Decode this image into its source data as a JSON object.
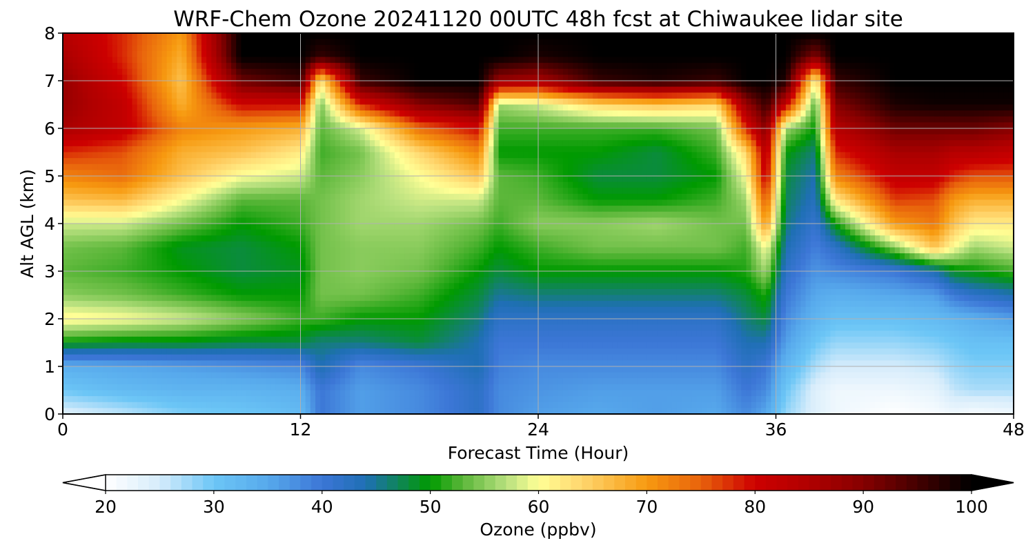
{
  "chart_data": {
    "type": "heatmap",
    "title": "WRF-Chem Ozone  20241120 00UTC 48h fcst at Chiwaukee lidar site",
    "xlabel": "Forecast Time (Hour)",
    "ylabel": "Alt AGL (km)",
    "xlim": [
      0,
      48
    ],
    "ylim": [
      0,
      8
    ],
    "xticks": [
      "0",
      "12",
      "24",
      "36",
      "48"
    ],
    "yticks": [
      "0",
      "1",
      "2",
      "3",
      "4",
      "5",
      "6",
      "7",
      "8"
    ],
    "grid": true,
    "hours": [
      0,
      3,
      6,
      9,
      12,
      13,
      15,
      18,
      21,
      22,
      24,
      27,
      30,
      33,
      34.5,
      35.5,
      36.5,
      38,
      39,
      42,
      44,
      45,
      46,
      48
    ],
    "altitudes_km": [
      0,
      0.5,
      1,
      1.5,
      2,
      2.5,
      3,
      3.5,
      4,
      4.5,
      5,
      5.5,
      6,
      6.5,
      7,
      7.5,
      8
    ],
    "values_ppbv": [
      [
        24,
        26,
        29,
        30,
        32,
        40,
        36,
        38,
        42,
        38,
        36,
        35,
        36,
        35,
        38,
        35,
        28,
        24,
        22,
        20,
        21,
        22,
        21,
        22
      ],
      [
        30,
        32,
        33,
        33,
        34,
        40,
        36,
        38,
        42,
        38,
        37,
        36,
        36,
        36,
        40,
        38,
        30,
        24,
        22,
        22,
        23,
        26,
        27,
        27
      ],
      [
        34,
        35,
        36,
        37,
        38,
        44,
        38,
        40,
        44,
        39,
        38,
        38,
        38,
        38,
        42,
        40,
        33,
        27,
        25,
        25,
        26,
        28,
        29,
        29
      ],
      [
        50,
        49,
        49,
        48,
        48,
        46,
        46,
        48,
        44,
        40,
        40,
        40,
        40,
        40,
        44,
        44,
        36,
        30,
        28,
        28,
        29,
        30,
        31,
        31
      ],
      [
        61,
        60,
        58,
        55,
        52,
        52,
        50,
        50,
        46,
        42,
        42,
        42,
        42,
        42,
        46,
        48,
        38,
        33,
        31,
        31,
        32,
        33,
        34,
        36
      ],
      [
        55,
        54,
        52,
        50,
        50,
        54,
        54,
        52,
        48,
        45,
        46,
        46,
        46,
        46,
        48,
        51,
        40,
        35,
        34,
        35,
        36,
        40,
        42,
        44
      ],
      [
        53,
        52,
        50,
        48,
        49,
        54,
        55,
        54,
        50,
        48,
        50,
        50,
        50,
        50,
        51,
        56,
        42,
        37,
        38,
        40,
        44,
        49,
        50,
        52
      ],
      [
        54,
        53,
        49,
        48,
        50,
        54,
        55,
        55,
        52,
        50,
        52,
        54,
        54,
        54,
        52,
        60,
        44,
        39,
        42,
        55,
        66,
        60,
        56,
        58
      ],
      [
        58,
        58,
        54,
        50,
        52,
        54,
        56,
        56,
        54,
        52,
        55,
        55,
        56,
        54,
        54,
        70,
        46,
        41,
        50,
        70,
        73,
        66,
        62,
        62
      ],
      [
        66,
        67,
        60,
        53,
        53,
        54,
        56,
        58,
        58,
        53,
        53,
        50,
        50,
        52,
        56,
        76,
        47,
        43,
        62,
        77,
        76,
        70,
        68,
        68
      ],
      [
        72,
        74,
        66,
        60,
        58,
        53,
        55,
        60,
        66,
        53,
        52,
        48,
        48,
        50,
        60,
        82,
        48,
        44,
        72,
        82,
        82,
        78,
        76,
        76
      ],
      [
        78,
        76,
        68,
        66,
        62,
        52,
        54,
        64,
        72,
        50,
        50,
        50,
        48,
        52,
        64,
        84,
        50,
        46,
        78,
        86,
        86,
        84,
        84,
        82
      ],
      [
        86,
        82,
        72,
        70,
        68,
        53,
        58,
        74,
        80,
        52,
        52,
        52,
        52,
        54,
        78,
        90,
        56,
        50,
        84,
        92,
        92,
        92,
        92,
        90
      ],
      [
        88,
        82,
        68,
        80,
        80,
        54,
        78,
        90,
        94,
        56,
        58,
        64,
        66,
        64,
        88,
        96,
        82,
        52,
        90,
        98,
        99,
        99,
        99,
        99
      ],
      [
        88,
        80,
        66,
        92,
        96,
        62,
        96,
        100,
        100,
        88,
        86,
        96,
        98,
        96,
        100,
        100,
        98,
        60,
        96,
        100,
        100,
        100,
        100,
        100
      ],
      [
        86,
        78,
        68,
        100,
        100,
        96,
        100,
        100,
        100,
        100,
        98,
        100,
        100,
        100,
        100,
        100,
        100,
        90,
        100,
        100,
        100,
        100,
        100,
        100
      ],
      [
        84,
        78,
        70,
        100,
        100,
        100,
        100,
        100,
        100,
        100,
        100,
        100,
        100,
        100,
        100,
        100,
        100,
        100,
        100,
        100,
        100,
        100,
        100,
        100
      ]
    ],
    "colorbar": {
      "label": "Ozone  (ppbv)",
      "min": 20,
      "max": 100,
      "ticks": [
        "20",
        "30",
        "40",
        "50",
        "60",
        "70",
        "80",
        "90",
        "100"
      ],
      "extend": "both",
      "stops": [
        [
          20,
          "#ffffff"
        ],
        [
          25,
          "#d6ecfb"
        ],
        [
          30,
          "#6cc6f6"
        ],
        [
          35,
          "#57a9ec"
        ],
        [
          40,
          "#3c76d6"
        ],
        [
          44,
          "#1f6fb5"
        ],
        [
          50,
          "#009a00"
        ],
        [
          53,
          "#5cb73a"
        ],
        [
          57,
          "#b7e07e"
        ],
        [
          60,
          "#ffff96"
        ],
        [
          64,
          "#ffd66e"
        ],
        [
          70,
          "#f79a10"
        ],
        [
          75,
          "#e8620c"
        ],
        [
          80,
          "#cd0000"
        ],
        [
          85,
          "#b00000"
        ],
        [
          90,
          "#860000"
        ],
        [
          95,
          "#440000"
        ],
        [
          100,
          "#000000"
        ]
      ],
      "under_color": "#ffffff",
      "over_color": "#000000"
    }
  }
}
